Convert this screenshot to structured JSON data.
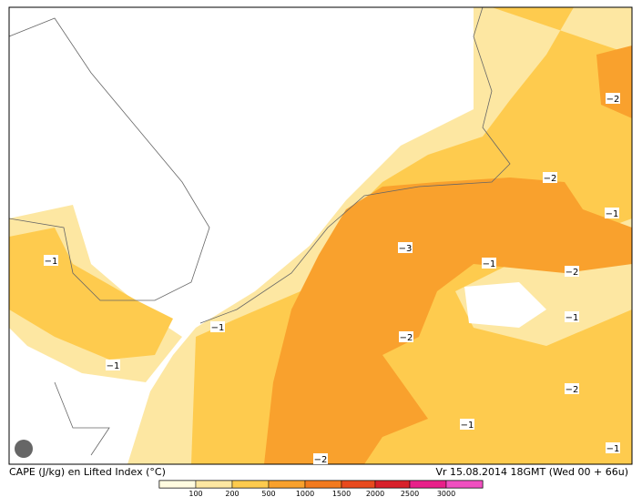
{
  "caption": "CAPE (J/kg) en Lifted Index (°C)",
  "valid_time": "Vr 15.08.2014 18GMT (Wed 00 + 66u)",
  "legend": {
    "labels": [
      "100",
      "200",
      "500",
      "1000",
      "1500",
      "2000",
      "2500",
      "3000"
    ]
  },
  "contour_labels": [
    "−2",
    "−2",
    "−1",
    "−3",
    "−1",
    "−2",
    "−1",
    "−1",
    "−2",
    "−1",
    "−1",
    "−2",
    "−1",
    "−2",
    "−1"
  ]
}
